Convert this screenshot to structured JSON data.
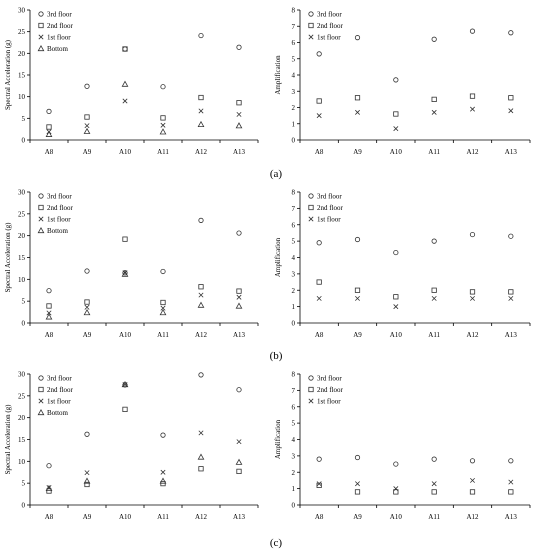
{
  "panels": [
    {
      "label": "(a)"
    },
    {
      "label": "(b)"
    },
    {
      "label": "(c)"
    }
  ],
  "chart_data": [
    {
      "type": "scatter",
      "panel": "(a)",
      "side": "left",
      "categories": [
        "A8",
        "A9",
        "A10",
        "A11",
        "A12",
        "A13"
      ],
      "ylabel": "Spectral Acceleration (g)",
      "ylim": [
        0,
        30
      ],
      "yticks": [
        0,
        5,
        10,
        15,
        20,
        25,
        30
      ],
      "legend": "top-left",
      "series": [
        {
          "name": "3rd floor",
          "marker": "circle",
          "values": [
            6.6,
            12.4,
            21.0,
            12.3,
            24.1,
            21.4
          ]
        },
        {
          "name": "2nd floor",
          "marker": "square",
          "values": [
            3.0,
            5.3,
            21.0,
            5.1,
            9.8,
            8.6
          ]
        },
        {
          "name": "1st floor",
          "marker": "cross",
          "values": [
            1.9,
            3.3,
            9.0,
            3.4,
            6.7,
            5.9
          ]
        },
        {
          "name": "Bottom",
          "marker": "triangle",
          "values": [
            1.3,
            2.0,
            12.9,
            1.9,
            3.6,
            3.3
          ]
        }
      ]
    },
    {
      "type": "scatter",
      "panel": "(a)",
      "side": "right",
      "categories": [
        "A8",
        "A9",
        "A10",
        "A11",
        "A12",
        "A13"
      ],
      "ylabel": "Amplification",
      "ylim": [
        0,
        8
      ],
      "yticks": [
        0,
        1,
        2,
        3,
        4,
        5,
        6,
        7,
        8
      ],
      "legend": "top-left",
      "series": [
        {
          "name": "3rd floor",
          "marker": "circle",
          "values": [
            5.3,
            6.3,
            3.7,
            6.2,
            6.7,
            6.6
          ]
        },
        {
          "name": "2nd floor",
          "marker": "square",
          "values": [
            2.4,
            2.6,
            1.6,
            2.5,
            2.7,
            2.6
          ]
        },
        {
          "name": "1st floor",
          "marker": "cross",
          "values": [
            1.5,
            1.7,
            0.7,
            1.7,
            1.9,
            1.8
          ]
        }
      ]
    },
    {
      "type": "scatter",
      "panel": "(b)",
      "side": "left",
      "categories": [
        "A8",
        "A9",
        "A10",
        "A11",
        "A12",
        "A13"
      ],
      "ylabel": "Spectral Acceleration (g)",
      "ylim": [
        0,
        30
      ],
      "yticks": [
        0,
        5,
        10,
        15,
        20,
        25,
        30
      ],
      "legend": "top-left",
      "series": [
        {
          "name": "3rd floor",
          "marker": "circle",
          "values": [
            7.4,
            11.9,
            11.5,
            11.8,
            23.5,
            20.6
          ]
        },
        {
          "name": "2nd floor",
          "marker": "square",
          "values": [
            3.9,
            4.8,
            19.2,
            4.7,
            8.3,
            7.3
          ]
        },
        {
          "name": "1st floor",
          "marker": "cross",
          "values": [
            2.3,
            3.6,
            11.5,
            3.4,
            6.4,
            5.9
          ]
        },
        {
          "name": "Bottom",
          "marker": "triangle",
          "values": [
            1.4,
            2.4,
            11.2,
            2.4,
            4.1,
            3.9
          ]
        }
      ]
    },
    {
      "type": "scatter",
      "panel": "(b)",
      "side": "right",
      "categories": [
        "A8",
        "A9",
        "A10",
        "A11",
        "A12",
        "A13"
      ],
      "ylabel": "Amplification",
      "ylim": [
        0,
        8
      ],
      "yticks": [
        0,
        1,
        2,
        3,
        4,
        5,
        6,
        7,
        8
      ],
      "legend": "top-left",
      "series": [
        {
          "name": "3rd floor",
          "marker": "circle",
          "values": [
            4.9,
            5.1,
            4.3,
            5.0,
            5.4,
            5.3
          ]
        },
        {
          "name": "2nd floor",
          "marker": "square",
          "values": [
            2.5,
            2.0,
            1.6,
            2.0,
            1.9,
            1.9
          ]
        },
        {
          "name": "1st floor",
          "marker": "cross",
          "values": [
            1.5,
            1.5,
            1.0,
            1.5,
            1.5,
            1.5
          ]
        }
      ]
    },
    {
      "type": "scatter",
      "panel": "(c)",
      "side": "left",
      "categories": [
        "A8",
        "A9",
        "A10",
        "A11",
        "A12",
        "A13"
      ],
      "ylabel": "Spectral Acceleration (g)",
      "ylim": [
        0,
        30
      ],
      "yticks": [
        0,
        5,
        10,
        15,
        20,
        25,
        30
      ],
      "legend": "top-left",
      "series": [
        {
          "name": "3rd floor",
          "marker": "circle",
          "values": [
            9.0,
            16.2,
            27.5,
            16.0,
            29.8,
            26.4
          ]
        },
        {
          "name": "2nd floor",
          "marker": "square",
          "values": [
            3.2,
            4.7,
            21.9,
            4.9,
            8.3,
            7.7
          ]
        },
        {
          "name": "1st floor",
          "marker": "cross",
          "values": [
            4.0,
            7.4,
            27.6,
            7.5,
            16.5,
            14.5
          ]
        },
        {
          "name": "Bottom",
          "marker": "triangle",
          "values": [
            3.8,
            5.5,
            27.6,
            5.5,
            11.0,
            9.8
          ]
        }
      ]
    },
    {
      "type": "scatter",
      "panel": "(c)",
      "side": "right",
      "categories": [
        "A8",
        "A9",
        "A10",
        "A11",
        "A12",
        "A13"
      ],
      "ylabel": "Amplification",
      "ylim": [
        0,
        8
      ],
      "yticks": [
        0,
        1,
        2,
        3,
        4,
        5,
        6,
        7,
        8
      ],
      "legend": "top-left",
      "series": [
        {
          "name": "3rd floor",
          "marker": "circle",
          "values": [
            2.8,
            2.9,
            2.5,
            2.8,
            2.7,
            2.7
          ]
        },
        {
          "name": "2nd floor",
          "marker": "square",
          "values": [
            1.2,
            0.8,
            0.8,
            0.8,
            0.8,
            0.8
          ]
        },
        {
          "name": "1st floor",
          "marker": "cross",
          "values": [
            1.3,
            1.3,
            1.0,
            1.3,
            1.5,
            1.4
          ]
        }
      ]
    }
  ]
}
